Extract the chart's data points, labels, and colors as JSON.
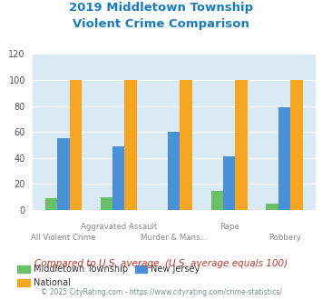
{
  "title_line1": "2019 Middletown Township",
  "title_line2": "Violent Crime Comparison",
  "title_color": "#1a7bbf",
  "categories": [
    "All Violent Crime",
    "Aggravated Assault",
    "Murder & Mans...",
    "Rape",
    "Robbery"
  ],
  "middletown": [
    9,
    10,
    0,
    15,
    5
  ],
  "national": [
    100,
    100,
    100,
    100,
    100
  ],
  "new_jersey": [
    55,
    49,
    60,
    41,
    79
  ],
  "color_middletown": "#6abf69",
  "color_national": "#f5a623",
  "color_nj": "#4a90d9",
  "ylim": [
    0,
    120
  ],
  "yticks": [
    0,
    20,
    40,
    60,
    80,
    100,
    120
  ],
  "note": "Compared to U.S. average. (U.S. average equals 100)",
  "note_color": "#c0392b",
  "copyright": "© 2025 CityRating.com - https://www.cityrating.com/crime-statistics/",
  "copyright_color": "#7f8c8d",
  "bg_color": "#daeaf4",
  "legend_labels": [
    "Middletown Township",
    "National",
    "New Jersey"
  ],
  "bar_width": 0.22,
  "row1_labels": [
    "Aggravated Assault",
    "Rape"
  ],
  "row1_indices": [
    1,
    3
  ],
  "row2_labels": [
    "All Violent Crime",
    "Murder & Mans...",
    "Robbery"
  ],
  "row2_indices": [
    0,
    2,
    4
  ]
}
